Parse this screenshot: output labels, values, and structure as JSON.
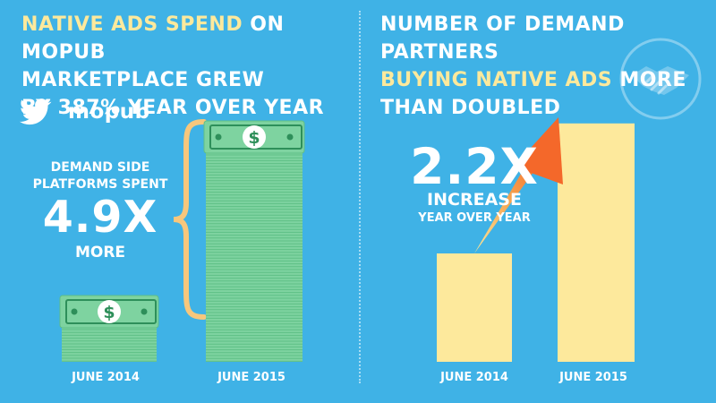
{
  "left_panel": {
    "headline_line1_accent": "NATIVE ADS SPEND",
    "headline_line1_rest": " ON MOPUB",
    "headline_line2": "MARKETPLACE GREW",
    "headline_line3": "BY 387% YEAR OVER YEAR",
    "brand": "mopub",
    "callout": {
      "label": "DEMAND SIDE PLATFORMS SPENT",
      "multiplier": "4.9X",
      "suffix": "MORE"
    }
  },
  "right_panel": {
    "headline_line1": "NUMBER OF DEMAND PARTNERS",
    "headline_line2_accent": "BUYING NATIVE ADS",
    "headline_line2_rest": " MORE",
    "headline_line3": "THAN DOUBLED",
    "callout": {
      "multiplier": "2.2X",
      "label": "INCREASE",
      "sublabel": "YEAR OVER YEAR"
    }
  },
  "icons": [
    "twitter-bird-icon",
    "handshake-icon",
    "dollar-bill-icon",
    "upward-arrow-icon"
  ],
  "colors": {
    "background": "#3fb2e6",
    "accent_text": "#fde99c",
    "bar_fill": "#fde99c",
    "money_green": "#7ed3a0",
    "money_dark": "#2e8f5a",
    "brace": "#f7c77c",
    "arrow": "#f4682a"
  },
  "chart_data": [
    {
      "type": "bar",
      "chart": "native-ads-spend",
      "categories": [
        "JUNE 2014",
        "JUNE 2015"
      ],
      "values": [
        1,
        4.9
      ],
      "annotation": "4.9X"
    },
    {
      "type": "bar",
      "chart": "demand-partners",
      "categories": [
        "JUNE 2014",
        "JUNE 2015"
      ],
      "values": [
        1,
        2.2
      ],
      "annotation": "2.2X"
    }
  ]
}
